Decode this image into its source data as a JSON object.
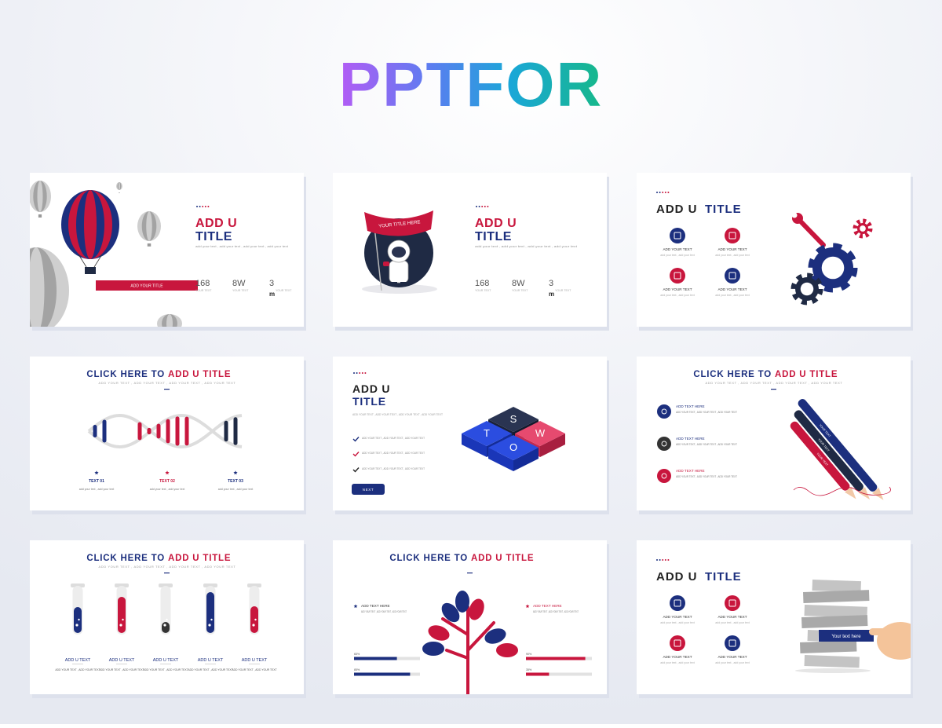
{
  "logo": "PPTFOR",
  "slides": [
    {
      "title_a": "ADD U",
      "title_b": "TITLE",
      "body": "add your text , add your text , add your text , add your text",
      "stats": [
        {
          "value": "168",
          "label": "YOUR TEXT"
        },
        {
          "value": "8W",
          "label": "YOUR TEXT"
        },
        {
          "value": "3",
          "unit": "m",
          "label": "YOUR TEXT"
        }
      ],
      "banner": "ADD YOUR TITLE"
    },
    {
      "title_a": "ADD U",
      "title_b": "TITLE",
      "body": "add your text , add your text , add your text , add your text",
      "stats": [
        {
          "value": "168",
          "label": "YOUR TEXT"
        },
        {
          "value": "8W",
          "label": "YOUR TEXT"
        },
        {
          "value": "3",
          "unit": "m",
          "label": "YOUR TEXT"
        }
      ],
      "banner": "YOUR TITLE HERE"
    },
    {
      "title_a": "ADD U",
      "title_b": "TITLE",
      "items": [
        {
          "label": "ADD YOUR TEXT",
          "body": "add your text , add your text"
        },
        {
          "label": "ADD YOUR TEXT",
          "body": "add your text , add your text"
        },
        {
          "label": "ADD YOUR TEXT",
          "body": "add your text , add your text"
        },
        {
          "label": "ADD YOUR TEXT",
          "body": "add your text , add your text"
        }
      ]
    },
    {
      "title_a": "CLICK HERE TO",
      "title_b": "ADD U TITLE",
      "subtitle": "ADD YOUR TEXT , ADD YOUR TEXT , ADD YOUR TEXT , ADD YOUR TEXT",
      "items": [
        {
          "label": "TEXT 01",
          "body": "add your text , add your text"
        },
        {
          "label": "TEXT 02",
          "body": "add your text , add your text"
        },
        {
          "label": "TEXT 03",
          "body": "add your text , add your text"
        }
      ]
    },
    {
      "title_a": "ADD U",
      "title_b": "TITLE",
      "body": "ADD YOUR TEXT , ADD YOUR TEXT , ADD YOUR TEXT , ADD YOUR TEXT",
      "checks": [
        "ADD YOUR TEXT , ADD YOUR TEXT , ADD YOUR TEXT",
        "ADD YOUR TEXT , ADD YOUR TEXT , ADD YOUR TEXT",
        "ADD YOUR TEXT , ADD YOUR TEXT , ADD YOUR TEXT"
      ],
      "button": "NEXT",
      "swot": [
        "S",
        "W",
        "O",
        "T"
      ]
    },
    {
      "title_a": "CLICK HERE TO",
      "title_b": "ADD U TITLE",
      "subtitle": "ADD YOUR TEXT , ADD YOUR TEXT , ADD YOUR TEXT , ADD YOUR TEXT",
      "items": [
        {
          "label": "ADD TEXT HERE",
          "body": "ADD YOUR TEXT , ADD YOUR TEXT , ADD YOUR TEXT"
        },
        {
          "label": "ADD TEXT HERE",
          "body": "ADD YOUR TEXT , ADD YOUR TEXT , ADD YOUR TEXT"
        },
        {
          "label": "ADD TEXT HERE",
          "body": "ADD YOUR TEXT , ADD YOUR TEXT , ADD YOUR TEXT"
        }
      ],
      "pens": [
        "YOUR TEXT",
        "YOUR TEXT",
        "YOUR TEXT"
      ]
    },
    {
      "title_a": "CLICK HERE TO",
      "title_b": "ADD U TITLE",
      "subtitle": "ADD YOUR TEXT , ADD YOUR TEXT , ADD YOUR TEXT , ADD YOUR TEXT",
      "items": [
        {
          "label": "ADD U TEXT",
          "body": "ADD YOUR TEXT , ADD YOUR TEXT"
        },
        {
          "label": "ADD U TEXT",
          "body": "ADD YOUR TEXT , ADD YOUR TEXT"
        },
        {
          "label": "ADD U TEXT",
          "body": "ADD YOUR TEXT , ADD YOUR TEXT"
        },
        {
          "label": "ADD U TEXT",
          "body": "ADD YOUR TEXT , ADD YOUR TEXT"
        },
        {
          "label": "ADD U TEXT",
          "body": "ADD YOUR TEXT , ADD YOUR TEXT"
        }
      ]
    },
    {
      "title_a": "CLICK HERE TO",
      "title_b": "ADD U TITLE",
      "items": [
        {
          "label": "ADD TEXT HERE",
          "body": "ADD YOUR TEXT , ADD YOUR TEXT , ADD YOUR TEXT"
        },
        {
          "label": "ADD TEXT HERE",
          "body": "ADD YOUR TEXT , ADD YOUR TEXT , ADD YOUR TEXT"
        }
      ],
      "bars": [
        {
          "value": 65,
          "label": "65%"
        },
        {
          "value": 85,
          "label": "85%"
        },
        {
          "value": 90,
          "label": "90%"
        },
        {
          "value": 35,
          "label": "35%"
        }
      ]
    },
    {
      "title_a": "ADD U",
      "title_b": "TITLE",
      "items": [
        {
          "label": "ADD YOUR TEXT",
          "body": "add your text , add your text"
        },
        {
          "label": "ADD YOUR TEXT",
          "body": "add your text , add your text"
        },
        {
          "label": "ADD YOUR TEXT",
          "body": "add your text , add your text"
        },
        {
          "label": "ADD YOUR TEXT",
          "body": "add your text , add your text"
        }
      ],
      "tag": "Your text here"
    }
  ]
}
